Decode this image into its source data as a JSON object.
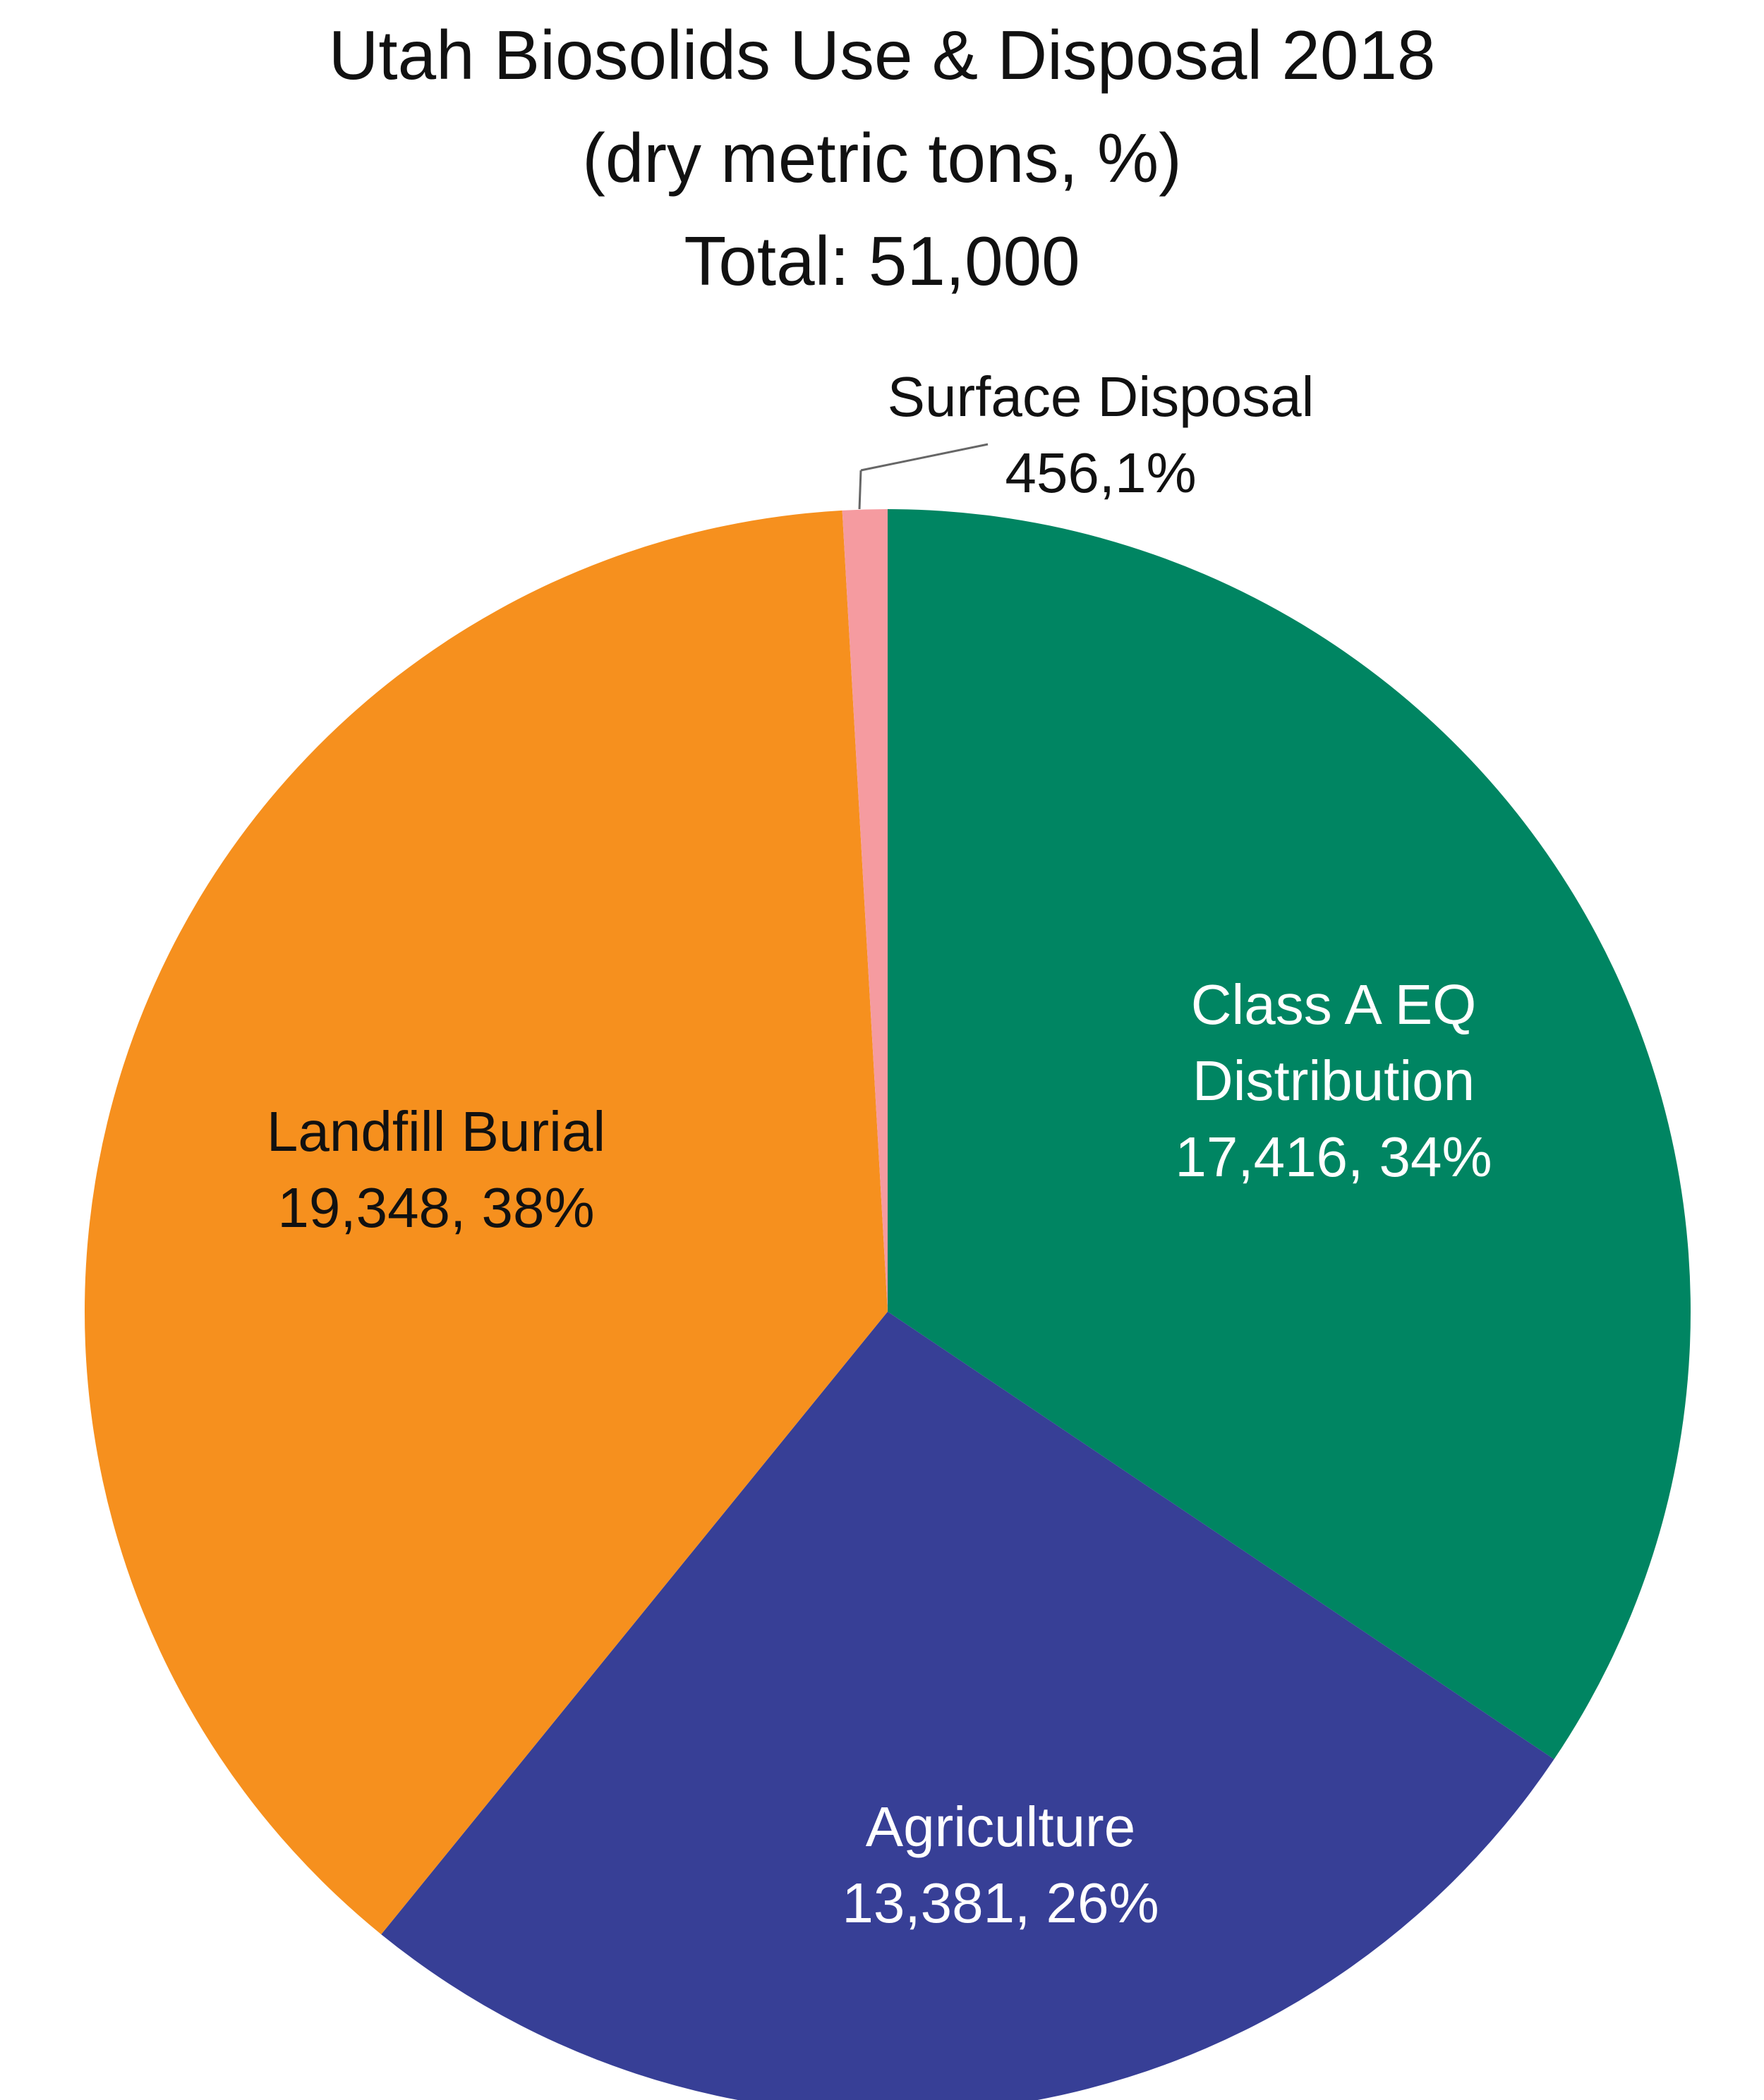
{
  "chart_data": {
    "type": "pie",
    "title_lines": [
      "Utah Biosolids Use & Disposal 2018",
      "(dry metric tons, %)",
      "Total: 51,000"
    ],
    "total": 51000,
    "slices": [
      {
        "name": "Class A EQ Distribution",
        "value": 17416,
        "percent": 34,
        "color": "#008562",
        "text_color": "#ffffff",
        "label_lines": [
          "Class A EQ",
          "Distribution",
          "17,416, 34%"
        ]
      },
      {
        "name": "Agriculture",
        "value": 13381,
        "percent": 26,
        "color": "#373F96",
        "text_color": "#ffffff",
        "label_lines": [
          "Agriculture",
          "13,381, 26%"
        ]
      },
      {
        "name": "Landfill Burial",
        "value": 19348,
        "percent": 38,
        "color": "#F6901E",
        "text_color": "#111111",
        "label_lines": [
          "Landfill Burial",
          "19,348, 38%"
        ]
      },
      {
        "name": "Surface Disposal",
        "value": 456,
        "percent": 1,
        "color": "#F59BA0",
        "text_color": "#111111",
        "label_lines": [
          "Surface Disposal",
          "456,1%"
        ]
      }
    ]
  }
}
